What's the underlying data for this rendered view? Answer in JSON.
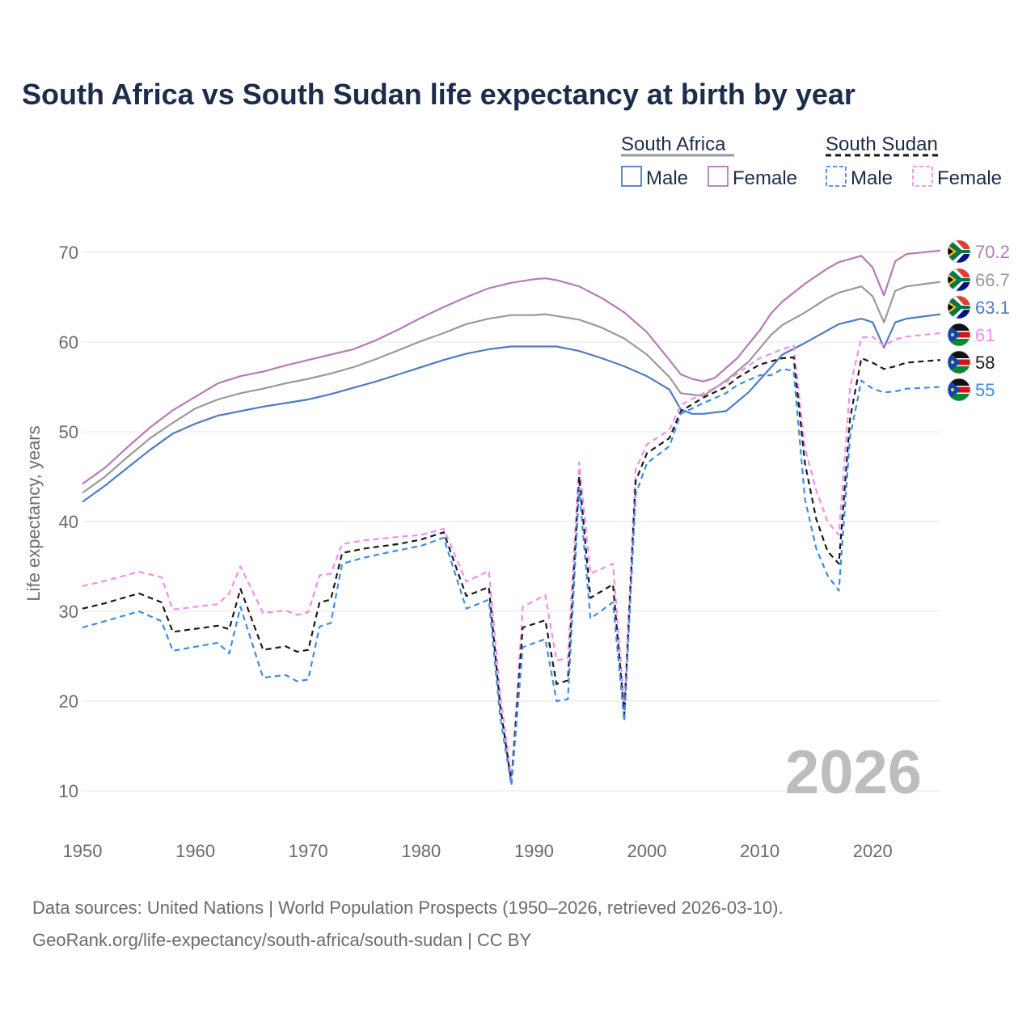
{
  "colors": {
    "title": "#1b2d4b",
    "axis_text": "#6b6b6b",
    "grid": "#e6e6e6",
    "watermark": "#bdbdbd",
    "sa_total": "#999999",
    "sa_male": "#4f7cc2",
    "sa_female": "#b77ab8",
    "ss_total": "#1a1a1a",
    "ss_male": "#3d8bea",
    "ss_female": "#f58cec"
  },
  "chart_data": {
    "type": "line",
    "title": "South Africa vs South Sudan life expectancy at birth by year",
    "ylabel": "Life expectancy, years",
    "xlabel": "",
    "xlim": [
      1950,
      2026
    ],
    "ylim": [
      5,
      75
    ],
    "x_ticks": [
      "1950",
      "1960",
      "1970",
      "1980",
      "1990",
      "2000",
      "2010",
      "2020"
    ],
    "y_ticks": [
      "10",
      "20",
      "30",
      "40",
      "50",
      "60",
      "70"
    ],
    "year_watermark": "2026",
    "legend": {
      "groups": [
        {
          "name": "South Africa",
          "items": [
            "Male",
            "Female"
          ]
        },
        {
          "name": "South Sudan",
          "items": [
            "Male",
            "Female"
          ]
        }
      ]
    },
    "end_labels": [
      "70.2",
      "66.7",
      "63.1",
      "61",
      "58",
      "55"
    ],
    "series": [
      {
        "name": "South Africa Female",
        "color_key": "sa_female",
        "dashed": false,
        "points": [
          [
            1950,
            44.2
          ],
          [
            1952,
            46
          ],
          [
            1954,
            48.3
          ],
          [
            1956,
            50.5
          ],
          [
            1958,
            52.4
          ],
          [
            1960,
            53.9
          ],
          [
            1962,
            55.4
          ],
          [
            1964,
            56.2
          ],
          [
            1966,
            56.7
          ],
          [
            1968,
            57.4
          ],
          [
            1970,
            58
          ],
          [
            1972,
            58.6
          ],
          [
            1974,
            59.2
          ],
          [
            1976,
            60.2
          ],
          [
            1978,
            61.4
          ],
          [
            1980,
            62.7
          ],
          [
            1982,
            63.9
          ],
          [
            1984,
            65
          ],
          [
            1986,
            66
          ],
          [
            1988,
            66.6
          ],
          [
            1990,
            67
          ],
          [
            1991,
            67.1
          ],
          [
            1992,
            66.9
          ],
          [
            1994,
            66.2
          ],
          [
            1996,
            64.9
          ],
          [
            1998,
            63.3
          ],
          [
            2000,
            61.1
          ],
          [
            2002,
            58
          ],
          [
            2003,
            56.4
          ],
          [
            2004,
            55.9
          ],
          [
            2005,
            55.6
          ],
          [
            2006,
            56
          ],
          [
            2008,
            58.2
          ],
          [
            2010,
            61.3
          ],
          [
            2011,
            63.2
          ],
          [
            2012,
            64.5
          ],
          [
            2014,
            66.5
          ],
          [
            2016,
            68.2
          ],
          [
            2017,
            68.9
          ],
          [
            2019,
            69.6
          ],
          [
            2020,
            68.3
          ],
          [
            2021,
            65.2
          ],
          [
            2022,
            69
          ],
          [
            2023,
            69.8
          ],
          [
            2026,
            70.2
          ]
        ]
      },
      {
        "name": "South Africa",
        "color_key": "sa_total",
        "dashed": false,
        "points": [
          [
            1950,
            43.2
          ],
          [
            1952,
            45
          ],
          [
            1954,
            47.2
          ],
          [
            1956,
            49.3
          ],
          [
            1958,
            51
          ],
          [
            1960,
            52.6
          ],
          [
            1962,
            53.6
          ],
          [
            1964,
            54.3
          ],
          [
            1966,
            54.8
          ],
          [
            1968,
            55.4
          ],
          [
            1970,
            55.9
          ],
          [
            1972,
            56.5
          ],
          [
            1974,
            57.2
          ],
          [
            1976,
            58.1
          ],
          [
            1978,
            59.1
          ],
          [
            1980,
            60.1
          ],
          [
            1982,
            61
          ],
          [
            1984,
            62
          ],
          [
            1986,
            62.6
          ],
          [
            1988,
            63
          ],
          [
            1990,
            63
          ],
          [
            1991,
            63.1
          ],
          [
            1992,
            62.9
          ],
          [
            1994,
            62.5
          ],
          [
            1996,
            61.6
          ],
          [
            1998,
            60.4
          ],
          [
            2000,
            58.6
          ],
          [
            2002,
            56.1
          ],
          [
            2003,
            54.3
          ],
          [
            2005,
            54
          ],
          [
            2007,
            55.7
          ],
          [
            2009,
            57.8
          ],
          [
            2011,
            60.8
          ],
          [
            2012,
            61.9
          ],
          [
            2014,
            63.3
          ],
          [
            2016,
            64.9
          ],
          [
            2017,
            65.5
          ],
          [
            2019,
            66.2
          ],
          [
            2020,
            65.1
          ],
          [
            2021,
            62.2
          ],
          [
            2022,
            65.7
          ],
          [
            2023,
            66.2
          ],
          [
            2026,
            66.7
          ]
        ]
      },
      {
        "name": "South Africa Male",
        "color_key": "sa_male",
        "dashed": false,
        "points": [
          [
            1950,
            42.2
          ],
          [
            1952,
            44
          ],
          [
            1954,
            46
          ],
          [
            1956,
            48
          ],
          [
            1958,
            49.8
          ],
          [
            1960,
            50.9
          ],
          [
            1962,
            51.8
          ],
          [
            1964,
            52.3
          ],
          [
            1966,
            52.8
          ],
          [
            1968,
            53.2
          ],
          [
            1970,
            53.6
          ],
          [
            1972,
            54.2
          ],
          [
            1974,
            54.9
          ],
          [
            1976,
            55.6
          ],
          [
            1978,
            56.4
          ],
          [
            1980,
            57.2
          ],
          [
            1982,
            58
          ],
          [
            1984,
            58.7
          ],
          [
            1986,
            59.2
          ],
          [
            1988,
            59.5
          ],
          [
            1990,
            59.5
          ],
          [
            1992,
            59.5
          ],
          [
            1994,
            59
          ],
          [
            1996,
            58.2
          ],
          [
            1998,
            57.3
          ],
          [
            2000,
            56.2
          ],
          [
            2002,
            54.7
          ],
          [
            2003,
            52.5
          ],
          [
            2004,
            52
          ],
          [
            2005,
            52
          ],
          [
            2007,
            52.3
          ],
          [
            2009,
            54.4
          ],
          [
            2011,
            57.2
          ],
          [
            2012,
            58.6
          ],
          [
            2014,
            59.9
          ],
          [
            2016,
            61.3
          ],
          [
            2017,
            62
          ],
          [
            2019,
            62.6
          ],
          [
            2020,
            62.2
          ],
          [
            2021,
            59.4
          ],
          [
            2022,
            62.2
          ],
          [
            2023,
            62.6
          ],
          [
            2026,
            63.1
          ]
        ]
      },
      {
        "name": "South Sudan Female",
        "color_key": "ss_female",
        "dashed": true,
        "points": [
          [
            1950,
            32.8
          ],
          [
            1952,
            33.4
          ],
          [
            1955,
            34.4
          ],
          [
            1957,
            33.8
          ],
          [
            1958,
            30.2
          ],
          [
            1962,
            30.8
          ],
          [
            1963,
            32
          ],
          [
            1964,
            35
          ],
          [
            1966,
            29.8
          ],
          [
            1968,
            30.1
          ],
          [
            1969,
            29.6
          ],
          [
            1970,
            29.9
          ],
          [
            1971,
            34
          ],
          [
            1972,
            34.2
          ],
          [
            1973,
            37.5
          ],
          [
            1975,
            37.9
          ],
          [
            1978,
            38.3
          ],
          [
            1980,
            38.5
          ],
          [
            1982,
            39.2
          ],
          [
            1984,
            33.3
          ],
          [
            1986,
            34.5
          ],
          [
            1987,
            21
          ],
          [
            1988,
            11.2
          ],
          [
            1989,
            30.5
          ],
          [
            1991,
            31.8
          ],
          [
            1992,
            24.5
          ],
          [
            1993,
            24.8
          ],
          [
            1994,
            46.6
          ],
          [
            1995,
            34.2
          ],
          [
            1997,
            35.3
          ],
          [
            1998,
            19.5
          ],
          [
            1999,
            45.8
          ],
          [
            2000,
            48.6
          ],
          [
            2002,
            50.2
          ],
          [
            2003,
            53
          ],
          [
            2005,
            54.3
          ],
          [
            2007,
            55.5
          ],
          [
            2008,
            56.5
          ],
          [
            2010,
            58.2
          ],
          [
            2012,
            59.2
          ],
          [
            2013,
            59.6
          ],
          [
            2014,
            48.2
          ],
          [
            2015,
            43.5
          ],
          [
            2016,
            40
          ],
          [
            2017,
            38.5
          ],
          [
            2018,
            55
          ],
          [
            2019,
            60.5
          ],
          [
            2020,
            60.6
          ],
          [
            2021,
            59.6
          ],
          [
            2022,
            60.3
          ],
          [
            2023,
            60.6
          ],
          [
            2026,
            61
          ]
        ]
      },
      {
        "name": "South Sudan",
        "color_key": "ss_total",
        "dashed": true,
        "points": [
          [
            1950,
            30.3
          ],
          [
            1952,
            30.9
          ],
          [
            1955,
            32
          ],
          [
            1957,
            31
          ],
          [
            1958,
            27.7
          ],
          [
            1962,
            28.4
          ],
          [
            1963,
            28
          ],
          [
            1964,
            32.5
          ],
          [
            1966,
            25.7
          ],
          [
            1968,
            26.1
          ],
          [
            1969,
            25.5
          ],
          [
            1970,
            25.7
          ],
          [
            1971,
            31
          ],
          [
            1972,
            31.3
          ],
          [
            1973,
            36.5
          ],
          [
            1975,
            37
          ],
          [
            1978,
            37.5
          ],
          [
            1980,
            38
          ],
          [
            1982,
            38.8
          ],
          [
            1984,
            31.7
          ],
          [
            1986,
            32.7
          ],
          [
            1987,
            19.5
          ],
          [
            1988,
            10.9
          ],
          [
            1989,
            28.2
          ],
          [
            1991,
            29
          ],
          [
            1992,
            21.9
          ],
          [
            1993,
            22.3
          ],
          [
            1994,
            45
          ],
          [
            1995,
            31.5
          ],
          [
            1997,
            33
          ],
          [
            1998,
            18.5
          ],
          [
            1999,
            44.5
          ],
          [
            2000,
            47.6
          ],
          [
            2002,
            49.3
          ],
          [
            2003,
            52.3
          ],
          [
            2005,
            53.8
          ],
          [
            2007,
            55
          ],
          [
            2008,
            56
          ],
          [
            2010,
            57.5
          ],
          [
            2012,
            58.2
          ],
          [
            2013,
            58.3
          ],
          [
            2014,
            46.5
          ],
          [
            2015,
            40.3
          ],
          [
            2016,
            36.7
          ],
          [
            2017,
            35.3
          ],
          [
            2018,
            51.5
          ],
          [
            2019,
            58.2
          ],
          [
            2020,
            57.7
          ],
          [
            2021,
            57
          ],
          [
            2022,
            57.3
          ],
          [
            2023,
            57.7
          ],
          [
            2026,
            58
          ]
        ]
      },
      {
        "name": "South Sudan Male",
        "color_key": "ss_male",
        "dashed": true,
        "points": [
          [
            1950,
            28.2
          ],
          [
            1952,
            28.9
          ],
          [
            1955,
            30
          ],
          [
            1957,
            28.9
          ],
          [
            1958,
            25.6
          ],
          [
            1962,
            26.5
          ],
          [
            1963,
            25.3
          ],
          [
            1964,
            30.5
          ],
          [
            1966,
            22.6
          ],
          [
            1968,
            22.9
          ],
          [
            1969,
            22.2
          ],
          [
            1970,
            22.4
          ],
          [
            1971,
            28.3
          ],
          [
            1972,
            28.7
          ],
          [
            1973,
            35.3
          ],
          [
            1975,
            36
          ],
          [
            1978,
            36.8
          ],
          [
            1980,
            37.3
          ],
          [
            1982,
            38.2
          ],
          [
            1984,
            30.3
          ],
          [
            1986,
            31.3
          ],
          [
            1987,
            18.3
          ],
          [
            1988,
            10.6
          ],
          [
            1989,
            26
          ],
          [
            1991,
            26.9
          ],
          [
            1992,
            20
          ],
          [
            1993,
            20.2
          ],
          [
            1994,
            43.7
          ],
          [
            1995,
            29.2
          ],
          [
            1997,
            31
          ],
          [
            1998,
            17.7
          ],
          [
            1999,
            43
          ],
          [
            2000,
            46.5
          ],
          [
            2002,
            48.4
          ],
          [
            2003,
            52
          ],
          [
            2005,
            53.2
          ],
          [
            2007,
            54.3
          ],
          [
            2008,
            55.2
          ],
          [
            2010,
            56.3
          ],
          [
            2011,
            56.3
          ],
          [
            2012,
            57
          ],
          [
            2013,
            56.8
          ],
          [
            2014,
            42.5
          ],
          [
            2015,
            37
          ],
          [
            2016,
            34
          ],
          [
            2017,
            32.3
          ],
          [
            2018,
            49.5
          ],
          [
            2019,
            55.7
          ],
          [
            2020,
            54.8
          ],
          [
            2021,
            54.4
          ],
          [
            2022,
            54.5
          ],
          [
            2023,
            54.8
          ],
          [
            2026,
            55
          ]
        ]
      }
    ]
  },
  "footer": {
    "line1": "Data sources: United Nations | World Population Prospects (1950–2026, retrieved 2026-03-10).",
    "line2": "GeoRank.org/life-expectancy/south-africa/south-sudan | CC BY"
  }
}
